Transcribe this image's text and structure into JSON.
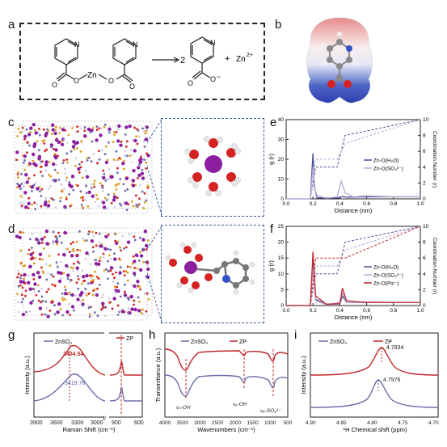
{
  "panels": {
    "a": "a",
    "b": "b",
    "c": "c",
    "d": "d",
    "e": "e",
    "f": "f",
    "g": "g",
    "h": "h",
    "i": "i"
  },
  "reaction": {
    "metal": "Zn",
    "coef": "2",
    "plus": "+",
    "ion": "Zn",
    "ion_charge": "2+",
    "charge": "−",
    "O": "O",
    "N": "N"
  },
  "panel_e": {
    "ylabel": "g (r)",
    "y2label": "Coordination Number (r)",
    "xlabel": "Distance (nm)",
    "legend": [
      "Zn-O(H₂O)",
      "Zn-O(SO₄²⁻)"
    ],
    "colors": [
      "#4a4f99",
      "#b9a6d6"
    ]
  },
  "panel_f": {
    "ylabel": "g (r)",
    "y2label": "Coordination Number (r)",
    "xlabel": "Distance (nm)",
    "legend": [
      "Zn-O(H₂O)",
      "Zn-O(SO₄²⁻)",
      "Zn-O(Pic⁻)"
    ],
    "colors": [
      "#4a4f99",
      "#b9a6d6",
      "#c0282b"
    ]
  },
  "panel_g": {
    "ylabel": "Intensity (a.u.)",
    "xlabel": "Raman Shift (cm⁻¹)",
    "legend": [
      "ZnSO₄",
      "ZP"
    ],
    "peak_zp": "3404.54",
    "peak_znso4": "3419.76",
    "colors": [
      "#6a6faa",
      "#c0282b"
    ]
  },
  "panel_h": {
    "ylabel": "Transmittance (a.u.)",
    "xlabel": "Wavenumbers (cm⁻¹)",
    "legend": [
      "ZnSO₄",
      "ZP"
    ],
    "ann": [
      "νₛ-OH",
      "νₐ-OH",
      "νₐ-SO₄²⁻"
    ]
  },
  "panel_i": {
    "ylabel": "Intensity (a.u.)",
    "xlabel": "¹H Chemical shift (ppm)",
    "legend": [
      "ZnSO₄",
      "ZP"
    ],
    "peak_zp": "4.7834",
    "peak_znso4": "4.7976"
  },
  "chart_data": [
    {
      "panel": "e",
      "type": "line",
      "xlabel": "Distance (nm)",
      "ylabel": "g (r)",
      "xlim": [
        0.0,
        1.0
      ],
      "ylim": [
        0,
        40
      ],
      "y2lim": [
        0,
        10
      ],
      "xticks": [
        0.0,
        0.2,
        0.4,
        0.6,
        0.8,
        1.0
      ],
      "yticks": [
        0,
        10,
        20,
        30,
        40
      ],
      "y2ticks": [
        0,
        2,
        4,
        6,
        8,
        10
      ],
      "series": [
        {
          "name": "Zn-O(H₂O)",
          "x": [
            0.0,
            0.18,
            0.2,
            0.21,
            0.23,
            0.3,
            0.4,
            0.42,
            0.45,
            0.6,
            0.8,
            1.0
          ],
          "y": [
            0,
            0,
            23,
            6,
            0.5,
            0.5,
            0.5,
            1.2,
            0.8,
            1,
            1,
            1
          ]
        },
        {
          "name": "Zn-O(SO₄²⁻)",
          "x": [
            0.0,
            0.18,
            0.2,
            0.22,
            0.3,
            0.38,
            0.41,
            0.44,
            0.5,
            0.6,
            0.8,
            1.0
          ],
          "y": [
            0,
            0,
            16,
            2,
            0.3,
            1,
            9,
            3,
            1,
            1.5,
            1,
            1
          ]
        }
      ]
    },
    {
      "panel": "f",
      "type": "line",
      "xlabel": "Distance (nm)",
      "ylabel": "g (r)",
      "xlim": [
        0.0,
        1.0
      ],
      "ylim": [
        0,
        25
      ],
      "y2lim": [
        0,
        10
      ],
      "xticks": [
        0.0,
        0.2,
        0.4,
        0.6,
        0.8,
        1.0
      ],
      "yticks": [
        0,
        5,
        10,
        15,
        20,
        25
      ],
      "y2ticks": [
        0,
        2,
        4,
        6,
        8,
        10
      ],
      "series": [
        {
          "name": "Zn-O(H₂O)",
          "x": [
            0.0,
            0.18,
            0.2,
            0.22,
            0.3,
            0.4,
            0.42,
            0.45,
            0.6,
            0.8,
            1.0
          ],
          "y": [
            0,
            0,
            14,
            2,
            0.4,
            0.5,
            3,
            1,
            1,
            1,
            1
          ]
        },
        {
          "name": "Zn-O(SO₄²⁻)",
          "x": [
            0.0,
            0.18,
            0.2,
            0.22,
            0.3,
            0.4,
            0.42,
            0.45,
            0.6,
            0.8,
            1.0
          ],
          "y": [
            0,
            0,
            12,
            1.5,
            0.3,
            1,
            4,
            1,
            1.2,
            1,
            1
          ]
        },
        {
          "name": "Zn-O(Pic⁻)",
          "x": [
            0.0,
            0.18,
            0.2,
            0.22,
            0.3,
            0.4,
            0.42,
            0.45,
            0.6,
            0.8,
            1.0
          ],
          "y": [
            0,
            0,
            17,
            3,
            0.4,
            0.6,
            5.5,
            1.5,
            1,
            1,
            1
          ]
        }
      ]
    },
    {
      "panel": "g",
      "type": "line",
      "xlabel": "Raman Shift (cm⁻¹)",
      "ylabel": "Intensity (a.u.)",
      "xticks": [
        "3900",
        "3600",
        "3300",
        "3000",
        "900",
        "600"
      ],
      "series": [
        {
          "name": "ZnSO₄",
          "peak": 3419.76
        },
        {
          "name": "ZP",
          "peak": 3404.54
        }
      ]
    },
    {
      "panel": "h",
      "type": "line",
      "xlabel": "Wavenumbers (cm⁻¹)",
      "ylabel": "Transmittance (a.u.)",
      "xlim": [
        4000,
        500
      ],
      "xticks": [
        4000,
        3500,
        3000,
        2500,
        2000,
        1500,
        1000,
        500
      ],
      "series": [
        {
          "name": "ZnSO₄"
        },
        {
          "name": "ZP"
        }
      ]
    },
    {
      "panel": "i",
      "type": "line",
      "xlabel": "¹H Chemical shift (ppm)",
      "ylabel": "Intensity (a.u.)",
      "xlim": [
        4.9,
        4.7
      ],
      "xticks": [
        "4.90",
        "4.85",
        "4.80",
        "4.75",
        "4.70"
      ],
      "series": [
        {
          "name": "ZnSO₄",
          "peak": 4.7976
        },
        {
          "name": "ZP",
          "peak": 4.7834
        }
      ]
    }
  ]
}
